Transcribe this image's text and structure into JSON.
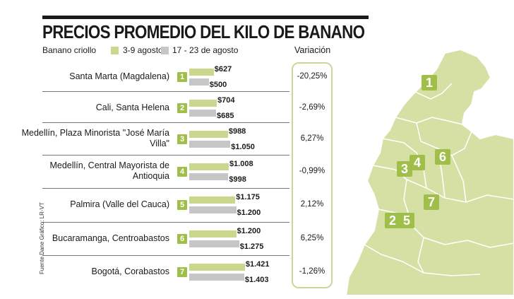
{
  "title": "PRECIOS PROMEDIO DEL KILO DE BANANO",
  "legend": {
    "group_label": "Banano criollo",
    "series1_label": "3-9 agosto",
    "series2_label": "17 - 23 de agosto",
    "variation_header": "Variación"
  },
  "source": "Fuente Dane  Gráfico: LR-VT",
  "colors": {
    "series1": "#c9d88d",
    "series2": "#c6c6c6",
    "badge": "#9fbf4a",
    "map_fill": "#d7e0a4",
    "map_stroke": "#ffffff"
  },
  "chart_data": {
    "type": "bar",
    "orientation": "horizontal",
    "categories": [
      "Santa Marta (Magdalena)",
      "Cali, Santa Helena",
      "Medellín, Plaza Minorista \"José María Villa\"",
      "Medellín, Central Mayorista de Antioquia",
      "Palmira (Valle del Cauca)",
      "Bucaramanga, Centroabastos",
      "Bogotá, Corabastos"
    ],
    "series": [
      {
        "name": "3-9 agosto",
        "values": [
          627,
          704,
          988,
          1008,
          1175,
          1200,
          1421
        ],
        "labels": [
          "$627",
          "$704",
          "$988",
          "$1.008",
          "$1.175",
          "$1.200",
          "$1.421"
        ]
      },
      {
        "name": "17 - 23 de agosto",
        "values": [
          500,
          685,
          1050,
          998,
          1200,
          1275,
          1403
        ],
        "labels": [
          "$500",
          "$685",
          "$1.050",
          "$998",
          "$1.200",
          "$1.275",
          "$1.403"
        ]
      }
    ],
    "variation": [
      "-20,25%",
      "-2,69%",
      "6,27%",
      "-0,99%",
      "2,12%",
      "6,25%",
      "-1,26%"
    ],
    "badges": [
      "1",
      "2",
      "3",
      "4",
      "5",
      "6",
      "7"
    ]
  },
  "map": {
    "pins": [
      "1",
      "2",
      "5",
      "3",
      "4",
      "6",
      "7"
    ]
  }
}
